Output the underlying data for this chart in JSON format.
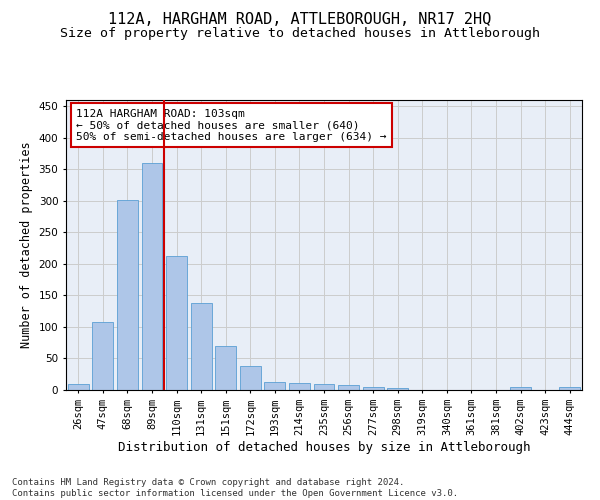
{
  "title": "112A, HARGHAM ROAD, ATTLEBOROUGH, NR17 2HQ",
  "subtitle": "Size of property relative to detached houses in Attleborough",
  "xlabel": "Distribution of detached houses by size in Attleborough",
  "ylabel": "Number of detached properties",
  "categories": [
    "26sqm",
    "47sqm",
    "68sqm",
    "89sqm",
    "110sqm",
    "131sqm",
    "151sqm",
    "172sqm",
    "193sqm",
    "214sqm",
    "235sqm",
    "256sqm",
    "277sqm",
    "298sqm",
    "319sqm",
    "340sqm",
    "361sqm",
    "381sqm",
    "402sqm",
    "423sqm",
    "444sqm"
  ],
  "values": [
    9,
    108,
    302,
    360,
    213,
    138,
    70,
    38,
    12,
    11,
    10,
    8,
    5,
    3,
    0,
    0,
    0,
    0,
    4,
    0,
    4
  ],
  "bar_color": "#aec6e8",
  "bar_edge_color": "#5a9fd4",
  "vline_color": "#cc0000",
  "annotation_box_text": "112A HARGHAM ROAD: 103sqm\n← 50% of detached houses are smaller (640)\n50% of semi-detached houses are larger (634) →",
  "annotation_box_color": "#cc0000",
  "ylim": [
    0,
    460
  ],
  "yticks": [
    0,
    50,
    100,
    150,
    200,
    250,
    300,
    350,
    400,
    450
  ],
  "grid_color": "#cccccc",
  "bg_color": "#e8eef7",
  "footer": "Contains HM Land Registry data © Crown copyright and database right 2024.\nContains public sector information licensed under the Open Government Licence v3.0.",
  "title_fontsize": 11,
  "subtitle_fontsize": 9.5,
  "xlabel_fontsize": 9,
  "ylabel_fontsize": 8.5,
  "tick_fontsize": 7.5,
  "annotation_fontsize": 8,
  "footer_fontsize": 6.5
}
